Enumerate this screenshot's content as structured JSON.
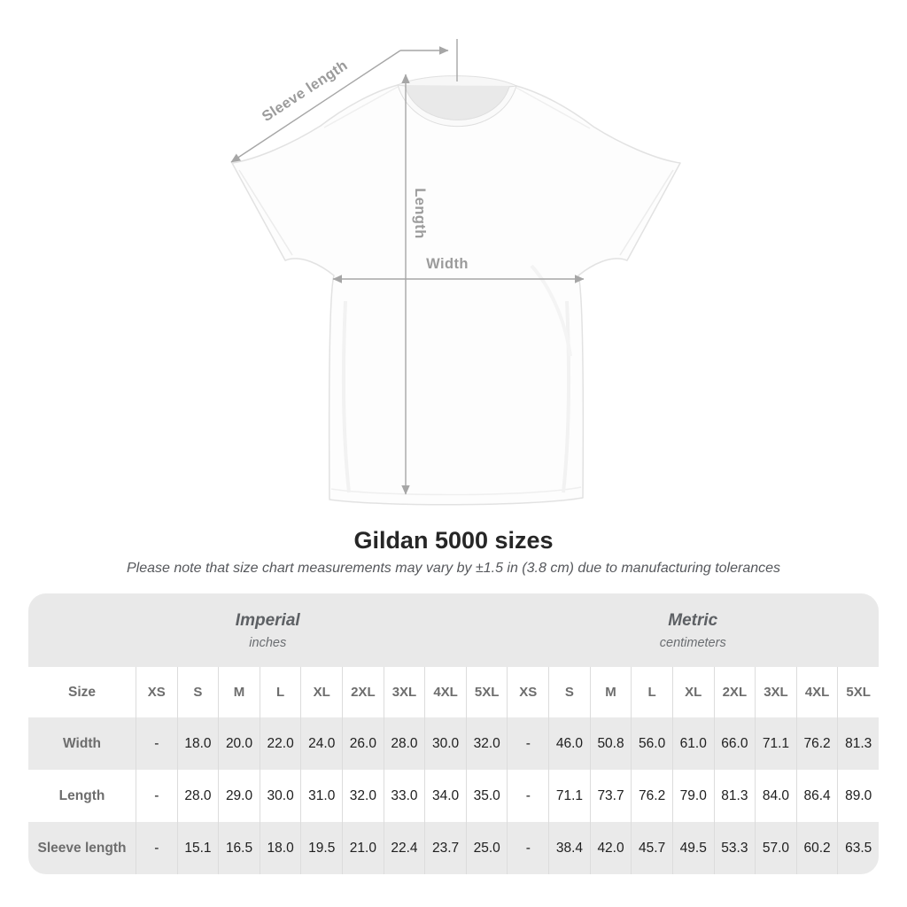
{
  "title": "Gildan 5000 sizes",
  "subtitle": "Please note that size chart measurements may vary by ±1.5 in (3.8 cm) due to manufacturing tolerances",
  "diagram": {
    "labels": {
      "sleeve_length": "Sleeve length",
      "length": "Length",
      "width": "Width"
    },
    "line_color": "#a6a6a6",
    "label_color": "#9b9b9b"
  },
  "table": {
    "size_header": "Size",
    "unit_groups": [
      {
        "name": "Imperial",
        "unit": "inches"
      },
      {
        "name": "Metric",
        "unit": "centimeters"
      }
    ],
    "sizes": [
      "XS",
      "S",
      "M",
      "L",
      "XL",
      "2XL",
      "3XL",
      "4XL",
      "5XL"
    ],
    "rows": [
      {
        "label": "Width",
        "imperial": [
          "-",
          "18.0",
          "20.0",
          "22.0",
          "24.0",
          "26.0",
          "28.0",
          "30.0",
          "32.0"
        ],
        "metric": [
          "-",
          "46.0",
          "50.8",
          "56.0",
          "61.0",
          "66.0",
          "71.1",
          "76.2",
          "81.3"
        ]
      },
      {
        "label": "Length",
        "imperial": [
          "-",
          "28.0",
          "29.0",
          "30.0",
          "31.0",
          "32.0",
          "33.0",
          "34.0",
          "35.0"
        ],
        "metric": [
          "-",
          "71.1",
          "73.7",
          "76.2",
          "79.0",
          "81.3",
          "84.0",
          "86.4",
          "89.0"
        ]
      },
      {
        "label": "Sleeve length",
        "imperial": [
          "-",
          "15.1",
          "16.5",
          "18.0",
          "19.5",
          "21.0",
          "22.4",
          "23.7",
          "25.0"
        ],
        "metric": [
          "-",
          "38.4",
          "42.0",
          "45.7",
          "49.5",
          "53.3",
          "57.0",
          "60.2",
          "63.5"
        ]
      }
    ],
    "colors": {
      "band_background": "#e9e9e9",
      "alt_row_background": "#eaeaea",
      "separator": "#dcdcdc",
      "label_text": "#6d6d6d",
      "value_text": "#202020"
    }
  }
}
